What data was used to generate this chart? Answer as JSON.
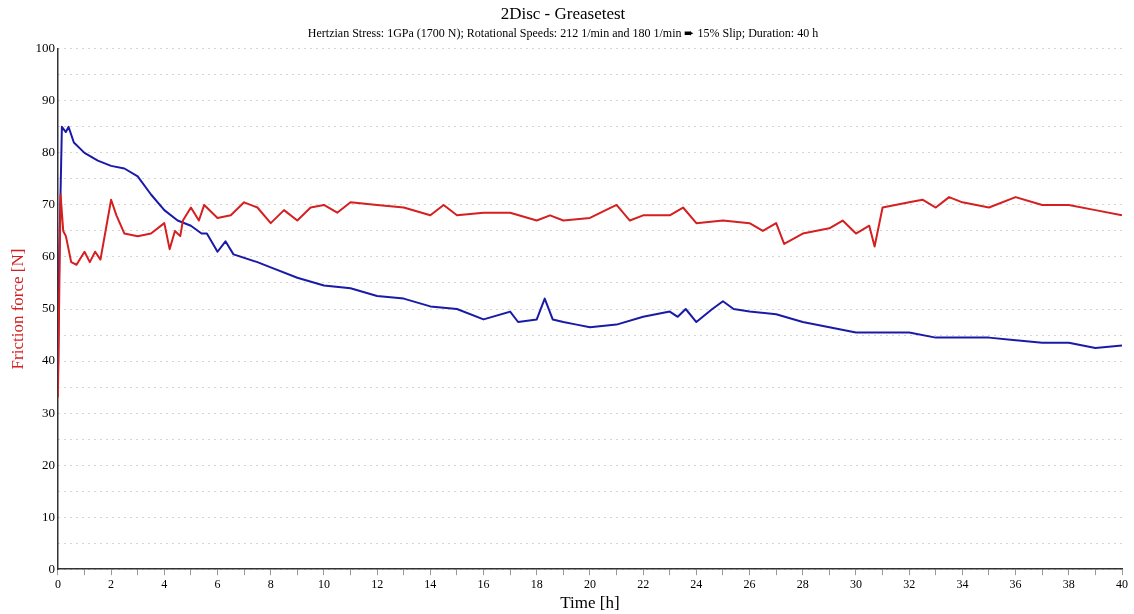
{
  "chart_data": {
    "type": "line",
    "title": "2Disc - Greasetest",
    "subtitle": "Hertzian Stress: 1GPa (1700 N); Rotational Speeds: 212 1/min and 180 1/min ➨ 15% Slip; Duration: 40 h",
    "xlabel": "Time [h]",
    "ylabel": "Friction force [N]",
    "xlim": [
      0,
      40
    ],
    "ylim": [
      0,
      100
    ],
    "xticks": [
      0,
      {
        "value": 1,
        "label": null
      },
      2,
      {
        "value": 3,
        "label": null
      },
      4,
      {
        "value": 5,
        "label": null
      },
      6,
      {
        "value": 7,
        "label": null
      },
      8,
      {
        "value": 9,
        "label": null
      },
      10,
      {
        "value": 11,
        "label": null
      },
      12,
      {
        "value": 13,
        "label": null
      },
      14,
      {
        "value": 15,
        "label": null
      },
      16,
      {
        "value": 17,
        "label": null
      },
      18,
      {
        "value": 19,
        "label": null
      },
      20,
      {
        "value": 21,
        "label": null
      },
      22,
      {
        "value": 23,
        "label": null
      },
      24,
      {
        "value": 25,
        "label": null
      },
      26,
      {
        "value": 27,
        "label": null
      },
      28,
      {
        "value": 29,
        "label": null
      },
      30,
      {
        "value": 31,
        "label": null
      },
      32,
      {
        "value": 33,
        "label": null
      },
      34,
      {
        "value": 35,
        "label": null
      },
      36,
      {
        "value": 37,
        "label": null
      },
      38,
      {
        "value": 39,
        "label": null
      },
      40
    ],
    "yticks": [
      0,
      {
        "value": 5,
        "label": null
      },
      10,
      {
        "value": 15,
        "label": null
      },
      20,
      {
        "value": 25,
        "label": null
      },
      30,
      {
        "value": 35,
        "label": null
      },
      40,
      {
        "value": 45,
        "label": null
      },
      50,
      {
        "value": 55,
        "label": null
      },
      60,
      {
        "value": 65,
        "label": null
      },
      70,
      {
        "value": 75,
        "label": null
      },
      80,
      {
        "value": 85,
        "label": null
      },
      90,
      {
        "value": 95,
        "label": null
      },
      100
    ],
    "grid": "y",
    "legend": false,
    "marker": "none",
    "line_style": "solid",
    "series": [
      {
        "color": "#d42020",
        "x": [
          0,
          0.1,
          0.2,
          0.3,
          0.5,
          0.7,
          1,
          1.2,
          1.4,
          1.6,
          2,
          2.2,
          2.5,
          3,
          3.5,
          4,
          4.2,
          4.4,
          4.6,
          4.7,
          5,
          5.3,
          5.5,
          6,
          6.5,
          7,
          7.5,
          8,
          8.5,
          9,
          9.5,
          10,
          10.5,
          11,
          12,
          13,
          14,
          14.5,
          15,
          16,
          17,
          18,
          18.5,
          19,
          20,
          21,
          21.5,
          22,
          23,
          23.5,
          24,
          25,
          26,
          26.5,
          27,
          27.3,
          28,
          29,
          29.5,
          30,
          30.5,
          30.7,
          31,
          32,
          32.5,
          33,
          33.5,
          34,
          35,
          36,
          37,
          38,
          39,
          40
        ],
        "values": [
          33,
          72,
          65,
          64,
          59,
          58.5,
          61,
          59,
          61,
          59.5,
          71,
          68,
          64.5,
          64,
          64.5,
          66.5,
          61.5,
          65,
          64,
          67,
          69.5,
          67,
          70,
          67.5,
          68,
          70.5,
          69.5,
          66.5,
          69,
          67,
          69.5,
          70,
          68.5,
          70.5,
          70,
          69.5,
          68,
          70,
          68,
          68.5,
          68.5,
          67,
          68,
          67,
          67.5,
          70,
          67,
          68,
          68,
          69.5,
          66.5,
          67,
          66.5,
          65,
          66.5,
          62.5,
          64.5,
          65.5,
          67,
          64.5,
          66,
          62,
          69.5,
          70.5,
          71,
          69.5,
          71.5,
          70.5,
          69.5,
          71.5,
          70,
          70,
          69,
          68
        ]
      },
      {
        "color": "#1a1aa8",
        "x": [
          0,
          0.05,
          0.15,
          0.3,
          0.4,
          0.6,
          1,
          1.5,
          2,
          2.5,
          3,
          3.5,
          4,
          4.5,
          5,
          5.4,
          5.6,
          6,
          6.3,
          6.6,
          7.5,
          8,
          9,
          10,
          11,
          12,
          13,
          14,
          15,
          16,
          17,
          17.3,
          18,
          18.3,
          18.6,
          19,
          19.5,
          20,
          21,
          22,
          23,
          23.3,
          23.6,
          24,
          24.6,
          25,
          25.4,
          26,
          27,
          28,
          29,
          30,
          31,
          32,
          33,
          34,
          35,
          36,
          37,
          38,
          39,
          40
        ],
        "values": [
          35,
          60,
          85,
          84,
          85,
          82,
          80,
          78.5,
          77.5,
          77,
          75.5,
          72,
          69,
          67,
          66,
          64.5,
          64.5,
          61,
          63,
          60.5,
          59,
          58,
          56,
          54.5,
          54,
          52.5,
          52,
          50.5,
          50,
          48,
          49.5,
          47.5,
          48,
          52,
          48,
          47.5,
          47,
          46.5,
          47,
          48.5,
          49.5,
          48.5,
          50,
          47.5,
          50,
          51.5,
          50,
          49.5,
          49,
          47.5,
          46.5,
          45.5,
          45.5,
          45.5,
          44.5,
          44.5,
          44.5,
          44,
          43.5,
          43.5,
          42.5,
          43
        ]
      }
    ]
  }
}
